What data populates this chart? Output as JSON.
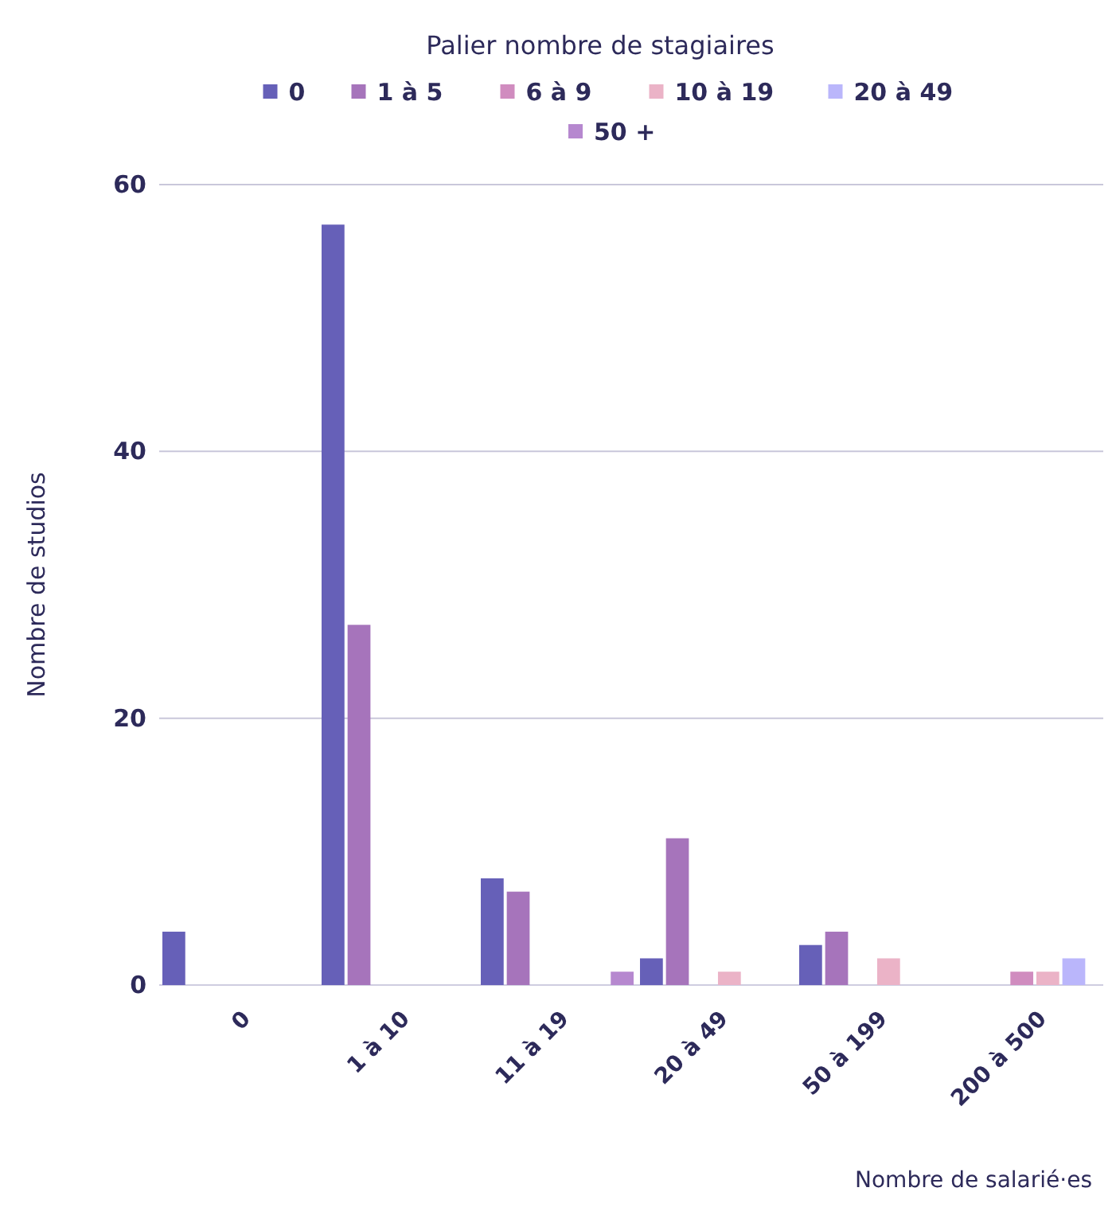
{
  "chart_data": {
    "type": "bar",
    "legend_title": "Palier nombre de stagiaires",
    "xlabel": "Nombre de salarié·es",
    "ylabel": "Nombre de studios",
    "categories": [
      "0",
      "1 à 10",
      "11 à 19",
      "20 à 49",
      "50 à 199",
      "200 à 500"
    ],
    "series": [
      {
        "name": "0",
        "color": "#6660b8",
        "values": [
          4,
          57,
          8,
          2,
          3,
          null
        ]
      },
      {
        "name": "1 à 5",
        "color": "#a674bb",
        "values": [
          null,
          27,
          7,
          11,
          4,
          null
        ]
      },
      {
        "name": "6 à 9",
        "color": "#d08cbf",
        "values": [
          null,
          null,
          null,
          null,
          null,
          1
        ]
      },
      {
        "name": "10 à 19",
        "color": "#ebb3c7",
        "values": [
          null,
          null,
          null,
          1,
          2,
          1
        ]
      },
      {
        "name": "20 à 49",
        "color": "#bab6fb",
        "values": [
          null,
          null,
          null,
          null,
          null,
          2
        ]
      },
      {
        "name": "50 +",
        "color": "#b688cf",
        "values": [
          null,
          null,
          1,
          null,
          null,
          null
        ]
      }
    ],
    "ylim": [
      0,
      60
    ],
    "yticks": [
      0,
      20,
      40,
      60
    ],
    "grid": "y",
    "legend": "top"
  }
}
